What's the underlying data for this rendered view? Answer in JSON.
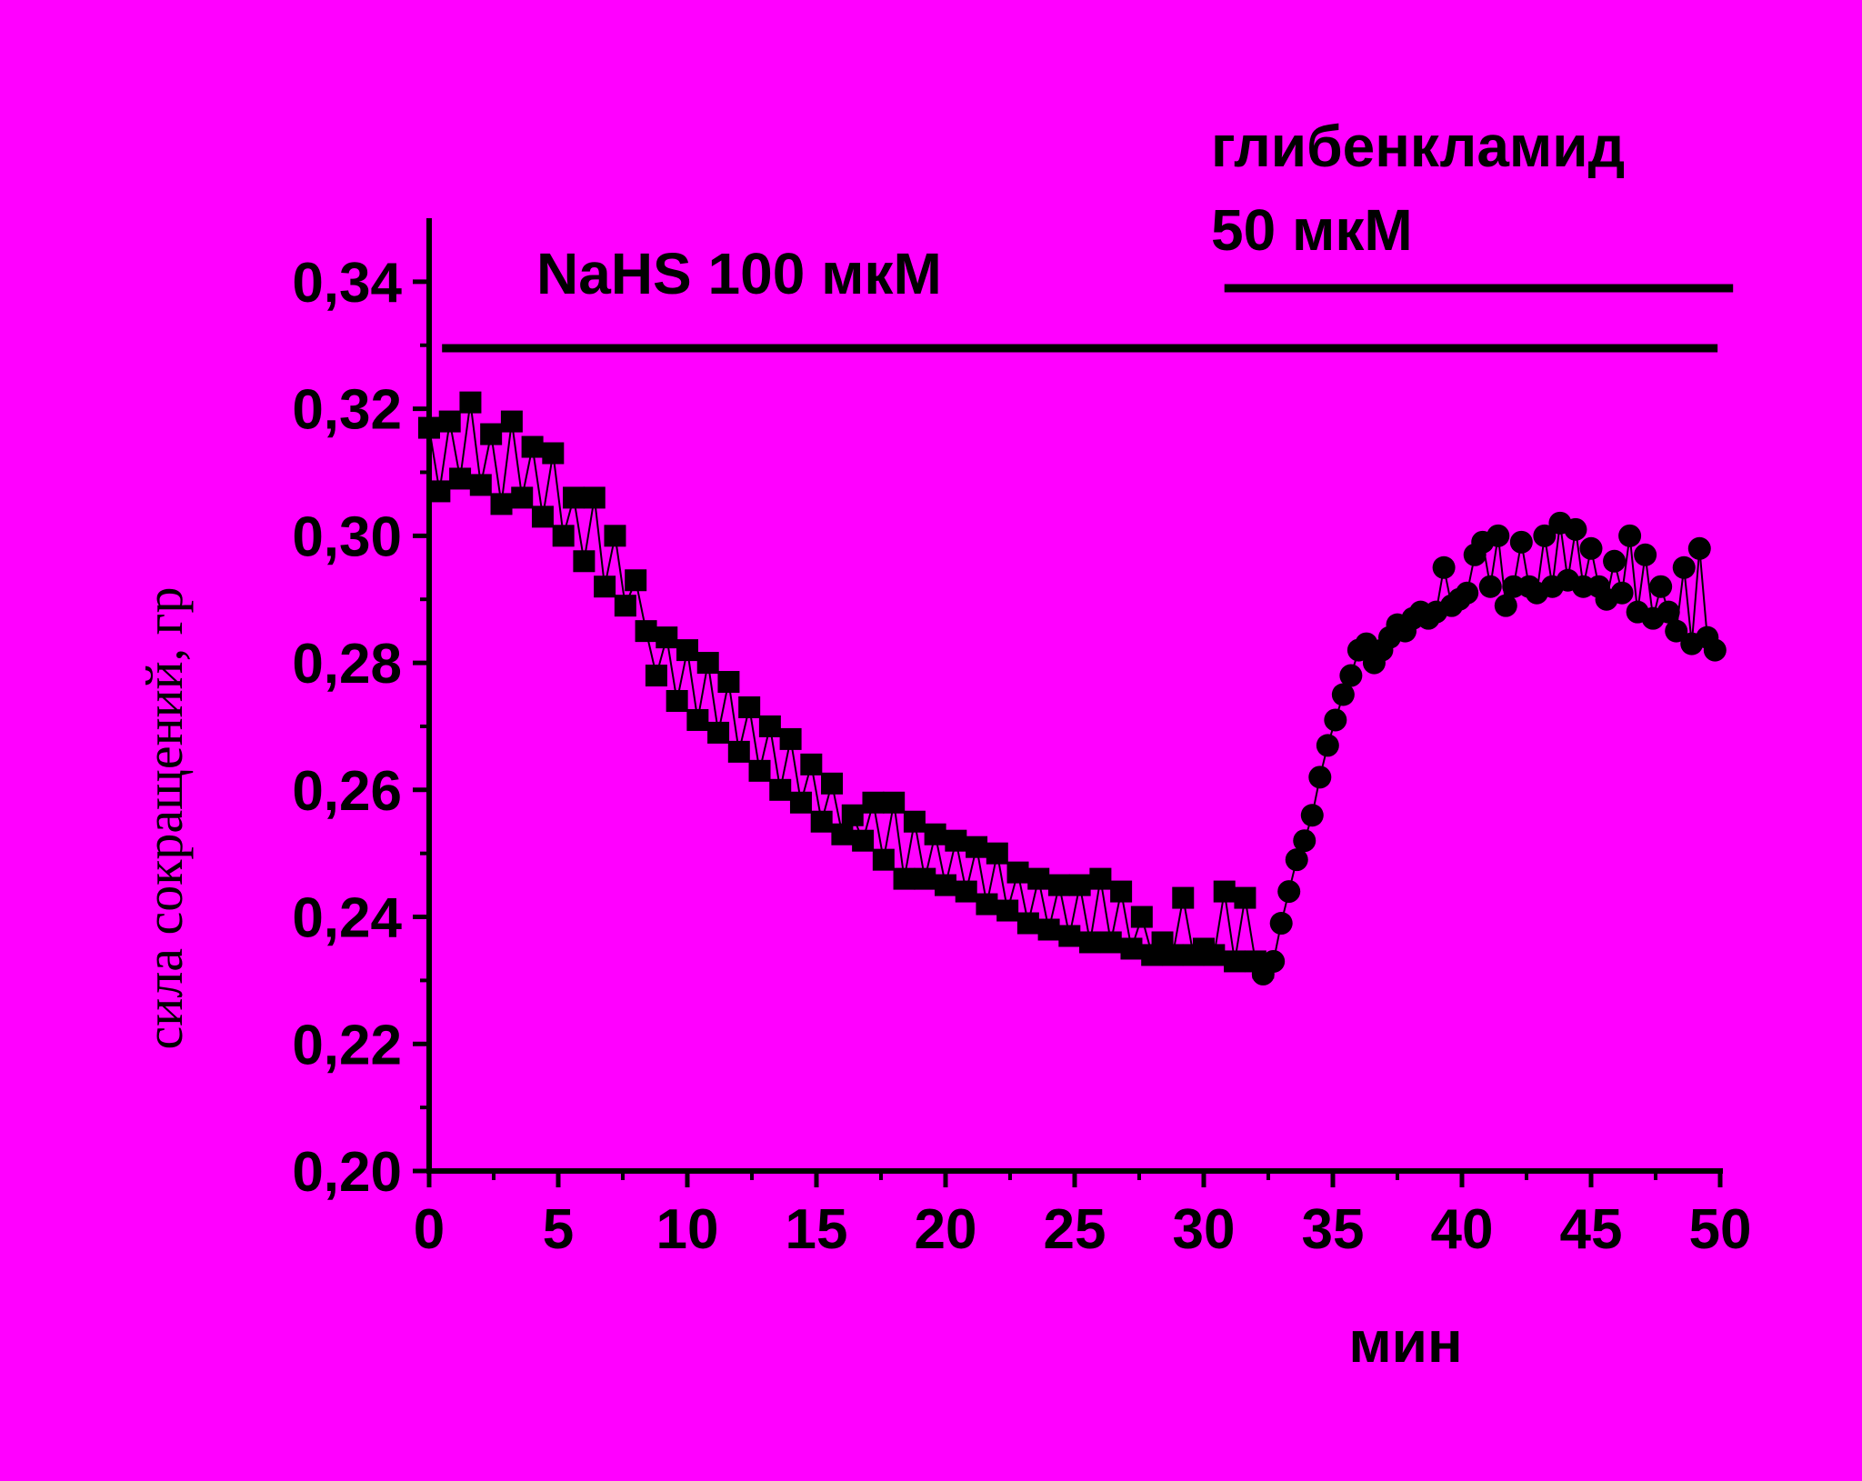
{
  "chart_data": {
    "type": "scatter",
    "xlabel": "мин",
    "ylabel": "сила сокращений, гр",
    "xlim": [
      0,
      50
    ],
    "ylim": [
      0.2,
      0.35
    ],
    "xticks": [
      "0",
      "5",
      "10",
      "15",
      "20",
      "25",
      "30",
      "35",
      "40",
      "45",
      "50"
    ],
    "yticks": [
      "0,20",
      "0,22",
      "0,24",
      "0,26",
      "0,28",
      "0,30",
      "0,32",
      "0,34"
    ],
    "grid": false,
    "annotations": [
      {
        "text": "NaHS 100 мкМ",
        "bar": [
          0.5,
          49.9
        ]
      },
      {
        "text_lines": [
          "глибенкламид",
          "50 мкМ"
        ],
        "bar": [
          30.8,
          50.5
        ]
      }
    ],
    "series": [
      {
        "marker": "square",
        "x": [
          0.0,
          0.4,
          0.8,
          1.2,
          1.6,
          2.0,
          2.4,
          2.8,
          3.2,
          3.6,
          4.0,
          4.4,
          4.8,
          5.2,
          5.6,
          6.0,
          6.4,
          6.8,
          7.2,
          7.6,
          8.0,
          8.4,
          8.8,
          9.2,
          9.6,
          10.0,
          10.4,
          10.8,
          11.2,
          11.6,
          12.0,
          12.4,
          12.8,
          13.2,
          13.6,
          14.0,
          14.4,
          14.8,
          15.2,
          15.6,
          16.0,
          16.4,
          16.8,
          17.2,
          17.6,
          18.0,
          18.4,
          18.8,
          19.2,
          19.6,
          20.0,
          20.4,
          20.8,
          21.2,
          21.6,
          22.0,
          22.4,
          22.8,
          23.2,
          23.6,
          24.0,
          24.4,
          24.8,
          25.2,
          25.6,
          26.0,
          26.4,
          26.8,
          27.2,
          27.6,
          28.0,
          28.4,
          28.8,
          29.2,
          29.6,
          30.0,
          30.4,
          30.8,
          31.2,
          31.6,
          32.0,
          32.3
        ],
        "y": [
          0.317,
          0.307,
          0.318,
          0.309,
          0.321,
          0.308,
          0.316,
          0.305,
          0.318,
          0.306,
          0.314,
          0.303,
          0.313,
          0.3,
          0.306,
          0.296,
          0.306,
          0.292,
          0.3,
          0.289,
          0.293,
          0.285,
          0.278,
          0.284,
          0.274,
          0.282,
          0.271,
          0.28,
          0.269,
          0.277,
          0.266,
          0.273,
          0.263,
          0.27,
          0.26,
          0.268,
          0.258,
          0.264,
          0.255,
          0.261,
          0.253,
          0.256,
          0.252,
          0.258,
          0.249,
          0.258,
          0.246,
          0.255,
          0.246,
          0.253,
          0.245,
          0.252,
          0.244,
          0.251,
          0.242,
          0.25,
          0.241,
          0.247,
          0.239,
          0.246,
          0.238,
          0.245,
          0.237,
          0.245,
          0.236,
          0.246,
          0.236,
          0.244,
          0.235,
          0.24,
          0.234,
          0.236,
          0.234,
          0.243,
          0.234,
          0.235,
          0.234,
          0.244,
          0.233,
          0.243,
          0.233,
          0.232
        ]
      },
      {
        "marker": "circle",
        "x": [
          32.3,
          32.7,
          33.0,
          33.3,
          33.6,
          33.9,
          34.2,
          34.5,
          34.8,
          35.1,
          35.4,
          35.7,
          36.0,
          36.3,
          36.6,
          36.9,
          37.2,
          37.5,
          37.8,
          38.1,
          38.4,
          38.7,
          39.0,
          39.3,
          39.6,
          39.9,
          40.2,
          40.5,
          40.8,
          41.1,
          41.4,
          41.7,
          42.0,
          42.3,
          42.6,
          42.9,
          43.2,
          43.5,
          43.8,
          44.1,
          44.4,
          44.7,
          45.0,
          45.3,
          45.6,
          45.9,
          46.2,
          46.5,
          46.8,
          47.1,
          47.4,
          47.7,
          48.0,
          48.3,
          48.6,
          48.9,
          49.2,
          49.5,
          49.8
        ],
        "y": [
          0.231,
          0.233,
          0.239,
          0.244,
          0.249,
          0.252,
          0.256,
          0.262,
          0.267,
          0.271,
          0.275,
          0.278,
          0.282,
          0.283,
          0.28,
          0.282,
          0.284,
          0.286,
          0.285,
          0.287,
          0.288,
          0.287,
          0.288,
          0.295,
          0.289,
          0.29,
          0.291,
          0.297,
          0.299,
          0.292,
          0.3,
          0.289,
          0.292,
          0.299,
          0.292,
          0.291,
          0.3,
          0.292,
          0.302,
          0.293,
          0.301,
          0.292,
          0.298,
          0.292,
          0.29,
          0.296,
          0.291,
          0.3,
          0.288,
          0.297,
          0.287,
          0.292,
          0.288,
          0.285,
          0.295,
          0.283,
          0.298,
          0.284,
          0.282
        ]
      }
    ]
  }
}
